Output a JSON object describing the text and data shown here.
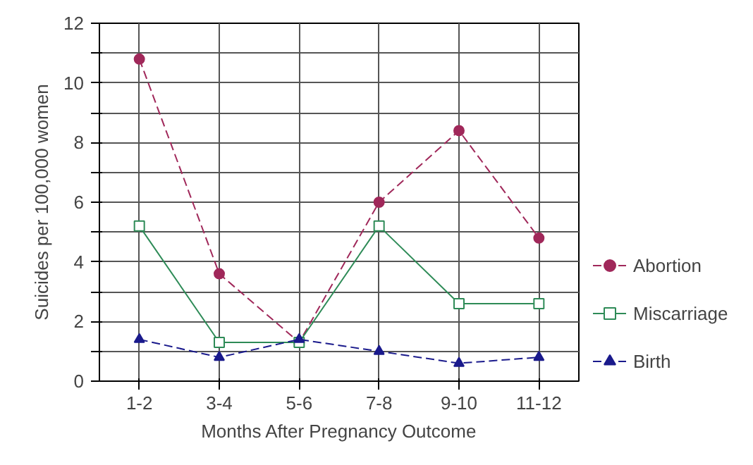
{
  "chart_data": {
    "type": "line",
    "xlabel": "Months After Pregnancy Outcome",
    "ylabel": "Suicides per 100,000 women",
    "categories": [
      "1-2",
      "3-4",
      "5-6",
      "7-8",
      "9-10",
      "11-12"
    ],
    "series": [
      {
        "name": "Abortion",
        "color": "#a0285a",
        "values": [
          10.8,
          3.6,
          1.3,
          6.0,
          8.4,
          4.8
        ],
        "marker": "circle",
        "line_style": "dashed"
      },
      {
        "name": "Miscarriage",
        "color": "#2e8b57",
        "values": [
          5.2,
          1.3,
          1.3,
          5.2,
          2.6,
          2.6
        ],
        "marker": "square",
        "line_style": "solid"
      },
      {
        "name": "Birth",
        "color": "#1a1a8c",
        "values": [
          1.4,
          0.8,
          1.4,
          1.0,
          0.6,
          0.8
        ],
        "marker": "triangle",
        "line_style": "dashed"
      }
    ],
    "ylim": [
      0,
      12
    ],
    "yticks": [
      0,
      {
        "value": 1,
        "label": null
      },
      2,
      {
        "value": 3,
        "label": null
      },
      4,
      {
        "value": 5,
        "label": null
      },
      6,
      {
        "value": 7,
        "label": null
      },
      8,
      {
        "value": 9,
        "label": null
      },
      10,
      {
        "value": 11,
        "label": null
      },
      12
    ],
    "grid": true,
    "legend": "right"
  }
}
